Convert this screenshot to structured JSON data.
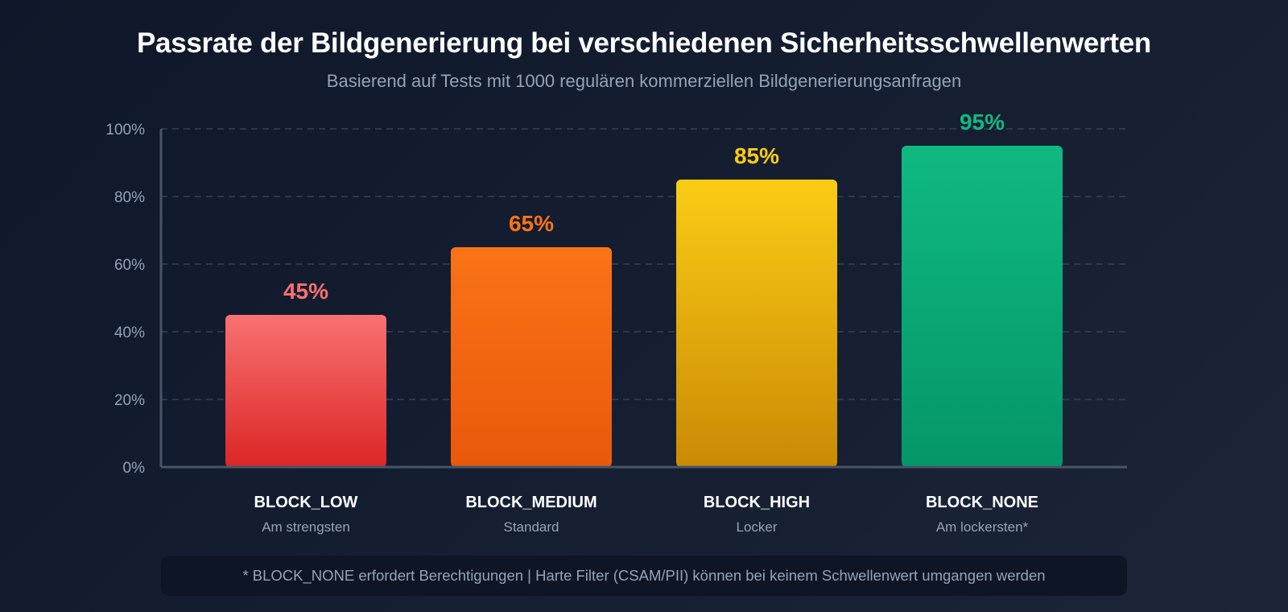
{
  "chart_data": {
    "type": "bar",
    "title": "Passrate der Bildgenerierung bei verschiedenen Sicherheitsschwellenwerten",
    "subtitle": "Basierend auf Tests mit 1000 regulären kommerziellen Bildgenerierungsanfragen",
    "categories": [
      "BLOCK_LOW",
      "BLOCK_MEDIUM",
      "BLOCK_HIGH",
      "BLOCK_NONE"
    ],
    "category_sublabels": [
      "Am strengsten",
      "Standard",
      "Locker",
      "Am lockersten*"
    ],
    "values": [
      45,
      65,
      85,
      95
    ],
    "data_labels": [
      "45%",
      "65%",
      "85%",
      "95%"
    ],
    "yticks": [
      0,
      20,
      40,
      60,
      80,
      100
    ],
    "ytick_labels": [
      "0%",
      "20%",
      "40%",
      "60%",
      "80%",
      "100%"
    ],
    "ylim": [
      0,
      100
    ],
    "grid": true,
    "colors": [
      {
        "top": "#f87171",
        "bottom": "#dc2626",
        "label": "#f87171"
      },
      {
        "top": "#f97316",
        "bottom": "#ea580c",
        "label": "#f97316"
      },
      {
        "top": "#facc15",
        "bottom": "#ca8a04",
        "label": "#facc15"
      },
      {
        "top": "#10b981",
        "bottom": "#059669",
        "label": "#10b981"
      }
    ],
    "axis_color": "#475569",
    "grid_color": "#334155",
    "tick_label_color": "#94a3b8"
  },
  "footnote": "* BLOCK_NONE erfordert Berechtigungen | Harte Filter (CSAM/PII) können bei keinem Schwellenwert umgangen werden"
}
